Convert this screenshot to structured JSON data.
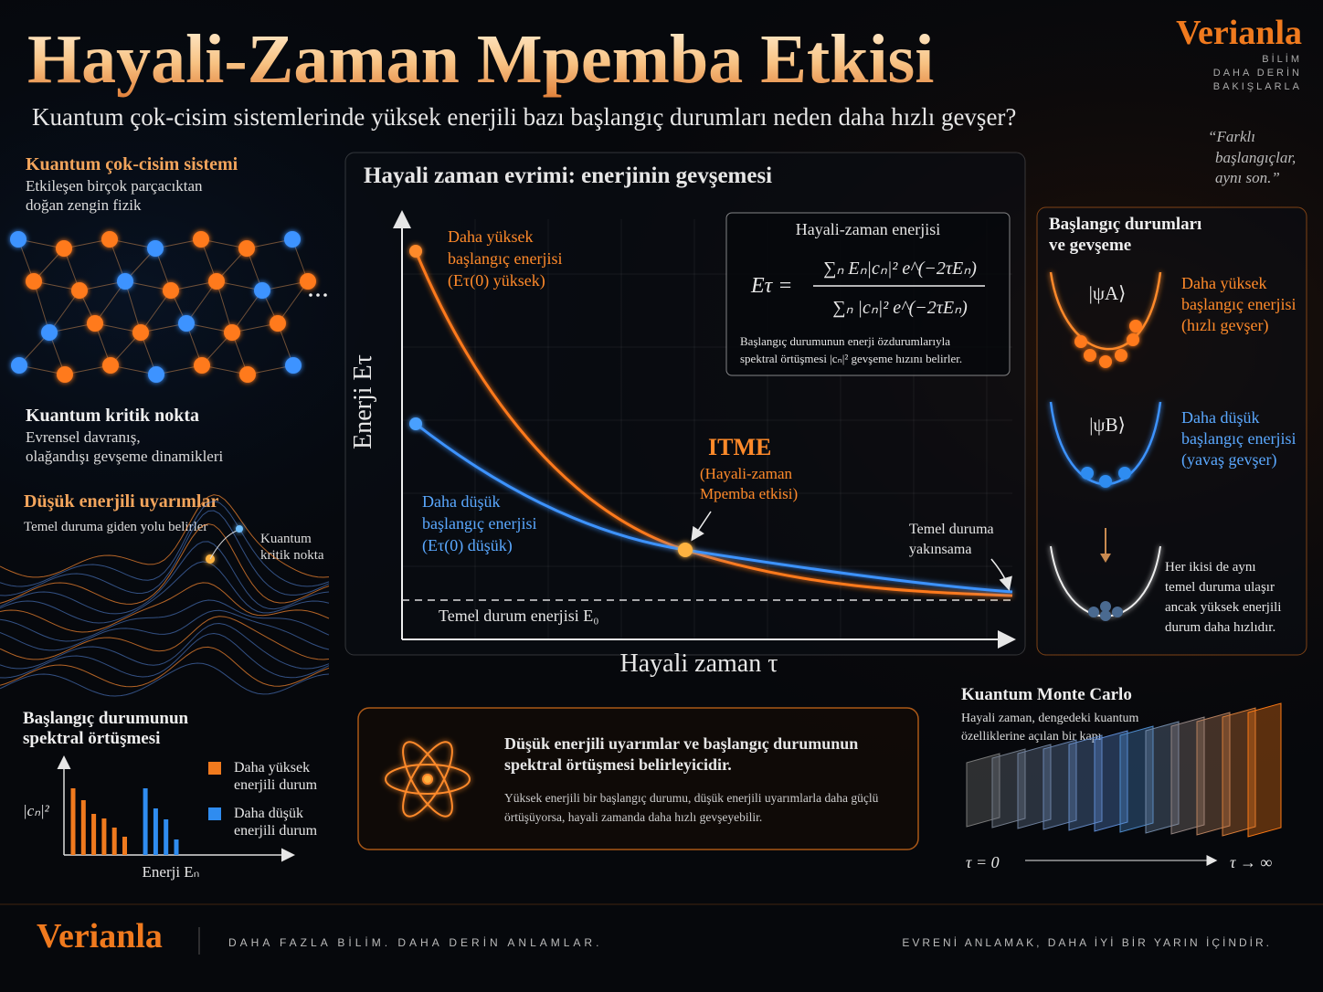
{
  "header": {
    "title": "Hayali-Zaman Mpemba Etkisi",
    "subtitle": "Kuantum çok-cisim sistemlerinde yüksek enerjili bazı başlangıç durumları neden daha hızlı gevşer?",
    "brand": "Verianla",
    "tagline": [
      "BİLİM",
      "DAHA DERİN",
      "BAKIŞLARLA"
    ],
    "quote": [
      "“Farklı",
      "başlangıçlar,",
      "aynı son.”"
    ]
  },
  "left": {
    "system": {
      "title": "Kuantum çok-cisim sistemi",
      "desc": [
        "Etkileşen birçok parçacıktan",
        "doğan zengin fizik"
      ]
    },
    "critical": {
      "title": "Kuantum kritik nokta",
      "desc": [
        "Evrensel davranış,",
        "olağandışı gevşeme dinamikleri"
      ]
    },
    "excitations": {
      "title": "Düşük enerjili uyarımlar",
      "desc": "Temel duruma giden yolu belirler",
      "annotation": [
        "Kuantum",
        "kritik nokta"
      ]
    }
  },
  "spectral_chart": {
    "type": "bar",
    "title": [
      "Başlangıç durumunun",
      "spektral örtüşmesi"
    ],
    "y_label": "|cₙ|²",
    "x_label": "Enerji Eₙ",
    "categories": [
      null,
      null,
      null,
      null,
      null,
      null,
      null,
      null,
      null,
      null,
      null
    ],
    "ylim": [
      0,
      10
    ],
    "series": [
      {
        "name": [
          "Daha yüksek",
          "enerjili durum"
        ],
        "color": "#f07a1e",
        "values": [
          7.3,
          6,
          4.5,
          4,
          3,
          2,
          null,
          null,
          null,
          null,
          null
        ]
      },
      {
        "name": [
          "Daha düşük",
          "enerjili durum"
        ],
        "color": "#2f8cf0",
        "values": [
          null,
          null,
          null,
          null,
          null,
          null,
          null,
          7.3,
          5.1,
          3.9,
          1.7
        ]
      }
    ]
  },
  "main": {
    "title": "Hayali zaman evrimi: enerjinin gevşemesi",
    "y_label": "Enerji Eτ",
    "x_label": "Hayali zaman τ",
    "high_label": [
      "Daha yüksek",
      "başlangıç enerjisi",
      "(Eτ(0) yüksek)"
    ],
    "low_label": [
      "Daha düşük",
      "başlangıç enerjisi",
      "(Eτ(0) düşük)"
    ],
    "itme": {
      "title": "ITME",
      "desc": [
        "(Hayali-zaman",
        "Mpemba etkisi)"
      ]
    },
    "convergence": [
      "Temel duruma",
      "yakınsama"
    ],
    "ground_label": "Temel durum enerjisi E₀",
    "formula": {
      "title": "Hayali-zaman enerjisi",
      "lhs": "Eτ =",
      "numerator": "∑ₙ Eₙ|cₙ|² e^(−2τEₙ)",
      "denominator": "∑ₙ |cₙ|² e^(−2τEₙ)",
      "note": [
        "Başlangıç durumunun enerji özdurumlarıyla",
        "spektral örtüşmesi |cₙ|² gevşeme hızını belirler."
      ]
    }
  },
  "right": {
    "title": [
      "Başlangıç durumları",
      "ve gevşeme"
    ],
    "state_a": {
      "ket": "|ψA⟩",
      "desc": [
        "Daha yüksek",
        "başlangıç enerjisi",
        "(hızlı gevşer)"
      ]
    },
    "state_b": {
      "ket": "|ψB⟩",
      "desc": [
        "Daha düşük",
        "başlangıç enerjisi",
        "(yavaş gevşer)"
      ]
    },
    "both": [
      "Her ikisi de aynı",
      "temel duruma ulaşır",
      "ancak yüksek enerjili",
      "durum daha hızlıdır."
    ]
  },
  "insight": {
    "title": [
      "Düşük enerjili uyarımlar ve başlangıç durumunun",
      "spektral örtüşmesi belirleyicidir."
    ],
    "desc": [
      "Yüksek enerjili bir başlangıç durumu, düşük enerjili uyarımlarla daha güçlü",
      "örtüşüyorsa, hayali zamanda daha hızlı gevşeyebilir."
    ]
  },
  "qmc": {
    "title": "Kuantum Monte Carlo",
    "desc": [
      "Hayali zaman, dengedeki kuantum",
      "özelliklerine açılan bir kapı"
    ],
    "start": "τ = 0",
    "end": "τ → ∞"
  },
  "footer": {
    "brand": "Verianla",
    "left": "DAHA FAZLA BİLİM. DAHA DERİN ANLAMLAR.",
    "right": "EVRENİ ANLAMAK, DAHA İYİ BİR YARIN İÇİNDİR."
  }
}
